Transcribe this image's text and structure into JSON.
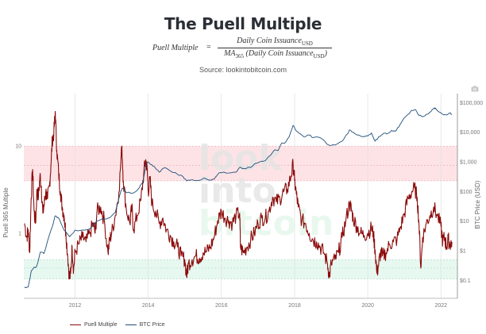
{
  "header": {
    "title": "The Puell Multiple",
    "formula": {
      "lhs": "Puell Multiple",
      "equals": "=",
      "numerator": "Daily Coin Issuance",
      "numerator_sub": "USD",
      "denominator_ma": "MA",
      "denominator_ma_sub": "365",
      "denominator_text": " (Daily Coin Issuance",
      "denominator_sub": "USD",
      "denominator_close": ")"
    },
    "source": "Source: lookintobitcoin.com"
  },
  "toolbar": {
    "camera_icon": "camera-icon"
  },
  "watermark": {
    "line1": "look",
    "line2": "into",
    "line3": "bitcoin"
  },
  "chart_data": {
    "type": "line",
    "title": "The Puell Multiple",
    "xlabel": "",
    "ylabel_left": "Puell 365 Multiple",
    "ylabel_right": "BTC Price (USD)",
    "x_ticks": [
      "2012",
      "2014",
      "2016",
      "2018",
      "2020",
      "2022"
    ],
    "x_range": [
      2010.6,
      2022.45
    ],
    "y_left_scale": "log",
    "y_left_ticks": [
      "10",
      "1"
    ],
    "y_left_range": [
      0.18,
      40
    ],
    "y_right_scale": "log",
    "y_right_ticks": [
      "$100,000",
      "$10,000",
      "$1,000",
      "$100",
      "$10",
      "$1",
      "$0.1"
    ],
    "y_right_range": [
      0.025,
      200000
    ],
    "bands": [
      {
        "name": "high-zone",
        "from": 4,
        "to": 10,
        "mid": 6,
        "color": "#fde3e6"
      },
      {
        "name": "low-zone",
        "from": 0.3,
        "to": 0.5,
        "mid": 0.4,
        "color": "#e6f8f0"
      }
    ],
    "grid": true,
    "legend": "bottom-left",
    "series": [
      {
        "name": "Puell Multiple",
        "color": "#8b0a0a",
        "axis": "left",
        "points": [
          [
            2010.62,
            1.3
          ],
          [
            2010.68,
            0.9
          ],
          [
            2010.72,
            1.1
          ],
          [
            2010.76,
            0.6
          ],
          [
            2010.8,
            2.5
          ],
          [
            2010.84,
            5.4
          ],
          [
            2010.88,
            1.8
          ],
          [
            2010.92,
            1.3
          ],
          [
            2010.96,
            3.2
          ],
          [
            2011.0,
            2.6
          ],
          [
            2011.04,
            4.6
          ],
          [
            2011.08,
            3.4
          ],
          [
            2011.12,
            1.7
          ],
          [
            2011.16,
            2.2
          ],
          [
            2011.2,
            3.0
          ],
          [
            2011.25,
            2.5
          ],
          [
            2011.3,
            3.5
          ],
          [
            2011.34,
            6.0
          ],
          [
            2011.38,
            12.0
          ],
          [
            2011.42,
            14.0
          ],
          [
            2011.46,
            25.0
          ],
          [
            2011.5,
            9.0
          ],
          [
            2011.55,
            5.0
          ],
          [
            2011.6,
            3.0
          ],
          [
            2011.65,
            2.0
          ],
          [
            2011.7,
            1.6
          ],
          [
            2011.75,
            1.0
          ],
          [
            2011.8,
            0.55
          ],
          [
            2011.85,
            0.3
          ],
          [
            2011.88,
            0.35
          ],
          [
            2011.92,
            0.7
          ],
          [
            2011.96,
            0.38
          ],
          [
            2012.0,
            0.6
          ],
          [
            2012.1,
            0.75
          ],
          [
            2012.2,
            0.9
          ],
          [
            2012.3,
            0.8
          ],
          [
            2012.4,
            1.0
          ],
          [
            2012.5,
            1.3
          ],
          [
            2012.55,
            1.0
          ],
          [
            2012.6,
            1.8
          ],
          [
            2012.7,
            2.0
          ],
          [
            2012.8,
            1.4
          ],
          [
            2012.9,
            0.6
          ],
          [
            2012.95,
            0.85
          ],
          [
            2013.0,
            1.0
          ],
          [
            2013.1,
            1.6
          ],
          [
            2013.2,
            3.0
          ],
          [
            2013.28,
            10.0
          ],
          [
            2013.32,
            4.0
          ],
          [
            2013.4,
            1.9
          ],
          [
            2013.5,
            1.3
          ],
          [
            2013.55,
            2.0
          ],
          [
            2013.6,
            1.1
          ],
          [
            2013.7,
            1.6
          ],
          [
            2013.8,
            2.4
          ],
          [
            2013.88,
            5.0
          ],
          [
            2013.93,
            7.0
          ],
          [
            2013.97,
            5.5
          ],
          [
            2014.0,
            3.0
          ],
          [
            2014.05,
            4.2
          ],
          [
            2014.1,
            2.2
          ],
          [
            2014.2,
            1.8
          ],
          [
            2014.3,
            1.3
          ],
          [
            2014.4,
            1.5
          ],
          [
            2014.5,
            1.1
          ],
          [
            2014.6,
            0.95
          ],
          [
            2014.7,
            0.8
          ],
          [
            2014.8,
            0.7
          ],
          [
            2014.9,
            0.55
          ],
          [
            2015.0,
            0.5
          ],
          [
            2015.05,
            0.32
          ],
          [
            2015.1,
            0.45
          ],
          [
            2015.2,
            0.5
          ],
          [
            2015.3,
            0.55
          ],
          [
            2015.4,
            0.52
          ],
          [
            2015.5,
            0.6
          ],
          [
            2015.6,
            0.62
          ],
          [
            2015.7,
            0.7
          ],
          [
            2015.8,
            0.9
          ],
          [
            2015.9,
            1.4
          ],
          [
            2016.0,
            1.8
          ],
          [
            2016.1,
            1.5
          ],
          [
            2016.2,
            1.4
          ],
          [
            2016.3,
            1.3
          ],
          [
            2016.4,
            1.6
          ],
          [
            2016.5,
            1.7
          ],
          [
            2016.52,
            0.7
          ],
          [
            2016.6,
            0.6
          ],
          [
            2016.7,
            0.7
          ],
          [
            2016.8,
            0.85
          ],
          [
            2016.9,
            1.0
          ],
          [
            2017.0,
            1.3
          ],
          [
            2017.1,
            1.5
          ],
          [
            2017.2,
            1.5
          ],
          [
            2017.3,
            1.8
          ],
          [
            2017.4,
            2.6
          ],
          [
            2017.5,
            2.3
          ],
          [
            2017.6,
            2.5
          ],
          [
            2017.7,
            3.0
          ],
          [
            2017.8,
            3.2
          ],
          [
            2017.9,
            4.5
          ],
          [
            2017.96,
            6.2
          ],
          [
            2018.0,
            4.0
          ],
          [
            2018.05,
            2.8
          ],
          [
            2018.1,
            2.0
          ],
          [
            2018.2,
            1.4
          ],
          [
            2018.3,
            1.3
          ],
          [
            2018.4,
            1.0
          ],
          [
            2018.5,
            0.85
          ],
          [
            2018.6,
            0.8
          ],
          [
            2018.7,
            0.7
          ],
          [
            2018.8,
            0.6
          ],
          [
            2018.9,
            0.45
          ],
          [
            2018.95,
            0.32
          ],
          [
            2019.0,
            0.45
          ],
          [
            2019.1,
            0.5
          ],
          [
            2019.2,
            0.6
          ],
          [
            2019.3,
            0.9
          ],
          [
            2019.4,
            1.4
          ],
          [
            2019.5,
            2.2
          ],
          [
            2019.55,
            1.9
          ],
          [
            2019.6,
            1.5
          ],
          [
            2019.7,
            1.2
          ],
          [
            2019.8,
            1.0
          ],
          [
            2019.9,
            0.95
          ],
          [
            2020.0,
            1.0
          ],
          [
            2020.1,
            1.15
          ],
          [
            2020.15,
            1.0
          ],
          [
            2020.2,
            0.65
          ],
          [
            2020.25,
            0.35
          ],
          [
            2020.3,
            0.45
          ],
          [
            2020.35,
            0.6
          ],
          [
            2020.4,
            0.55
          ],
          [
            2020.5,
            0.6
          ],
          [
            2020.6,
            0.75
          ],
          [
            2020.7,
            0.8
          ],
          [
            2020.8,
            0.85
          ],
          [
            2020.9,
            1.2
          ],
          [
            2021.0,
            1.7
          ],
          [
            2021.1,
            2.5
          ],
          [
            2021.2,
            3.0
          ],
          [
            2021.28,
            3.3
          ],
          [
            2021.35,
            2.6
          ],
          [
            2021.4,
            1.3
          ],
          [
            2021.45,
            0.4
          ],
          [
            2021.5,
            0.9
          ],
          [
            2021.6,
            1.3
          ],
          [
            2021.7,
            1.6
          ],
          [
            2021.8,
            2.0
          ],
          [
            2021.9,
            1.6
          ],
          [
            2022.0,
            1.2
          ],
          [
            2022.05,
            0.8
          ],
          [
            2022.1,
            0.9
          ],
          [
            2022.15,
            0.7
          ],
          [
            2022.2,
            0.85
          ],
          [
            2022.25,
            0.75
          ],
          [
            2022.3,
            0.8
          ]
        ]
      },
      {
        "name": "BTC Price",
        "color": "#1f4e79",
        "axis": "right",
        "points": [
          [
            2010.62,
            0.06
          ],
          [
            2010.72,
            0.06
          ],
          [
            2010.8,
            0.2
          ],
          [
            2010.85,
            0.25
          ],
          [
            2010.95,
            0.3
          ],
          [
            2011.05,
            0.9
          ],
          [
            2011.15,
            0.8
          ],
          [
            2011.3,
            3.5
          ],
          [
            2011.4,
            8
          ],
          [
            2011.45,
            15
          ],
          [
            2011.55,
            13
          ],
          [
            2011.7,
            5
          ],
          [
            2011.85,
            3
          ],
          [
            2012.0,
            5
          ],
          [
            2012.2,
            5
          ],
          [
            2012.4,
            5.5
          ],
          [
            2012.6,
            10
          ],
          [
            2012.8,
            12
          ],
          [
            2012.95,
            13
          ],
          [
            2013.1,
            20
          ],
          [
            2013.25,
            100
          ],
          [
            2013.3,
            130
          ],
          [
            2013.4,
            90
          ],
          [
            2013.6,
            90
          ],
          [
            2013.7,
            110
          ],
          [
            2013.85,
            200
          ],
          [
            2013.95,
            900
          ],
          [
            2014.0,
            1000
          ],
          [
            2014.1,
            800
          ],
          [
            2014.2,
            600
          ],
          [
            2014.3,
            450
          ],
          [
            2014.4,
            600
          ],
          [
            2014.5,
            600
          ],
          [
            2014.6,
            500
          ],
          [
            2014.8,
            380
          ],
          [
            2014.95,
            320
          ],
          [
            2015.05,
            230
          ],
          [
            2015.2,
            250
          ],
          [
            2015.4,
            240
          ],
          [
            2015.55,
            280
          ],
          [
            2015.7,
            240
          ],
          [
            2015.8,
            260
          ],
          [
            2015.9,
            380
          ],
          [
            2016.0,
            430
          ],
          [
            2016.2,
            420
          ],
          [
            2016.4,
            450
          ],
          [
            2016.5,
            650
          ],
          [
            2016.6,
            600
          ],
          [
            2016.8,
            650
          ],
          [
            2016.95,
            900
          ],
          [
            2017.05,
            1000
          ],
          [
            2017.2,
            1100
          ],
          [
            2017.35,
            1700
          ],
          [
            2017.45,
            2500
          ],
          [
            2017.55,
            2400
          ],
          [
            2017.65,
            4300
          ],
          [
            2017.75,
            4500
          ],
          [
            2017.85,
            7000
          ],
          [
            2017.96,
            17000
          ],
          [
            2018.05,
            11000
          ],
          [
            2018.15,
            9000
          ],
          [
            2018.25,
            7000
          ],
          [
            2018.4,
            8000
          ],
          [
            2018.5,
            6500
          ],
          [
            2018.7,
            6500
          ],
          [
            2018.87,
            4200
          ],
          [
            2018.95,
            3600
          ],
          [
            2019.1,
            3700
          ],
          [
            2019.3,
            5000
          ],
          [
            2019.45,
            9000
          ],
          [
            2019.5,
            12000
          ],
          [
            2019.6,
            10000
          ],
          [
            2019.75,
            8000
          ],
          [
            2019.9,
            7200
          ],
          [
            2020.0,
            7500
          ],
          [
            2020.1,
            9500
          ],
          [
            2020.2,
            5000
          ],
          [
            2020.3,
            7000
          ],
          [
            2020.45,
            9300
          ],
          [
            2020.55,
            9200
          ],
          [
            2020.65,
            11500
          ],
          [
            2020.75,
            10700
          ],
          [
            2020.85,
            15000
          ],
          [
            2020.95,
            25000
          ],
          [
            2021.1,
            40000
          ],
          [
            2021.2,
            55000
          ],
          [
            2021.3,
            58000
          ],
          [
            2021.4,
            37000
          ],
          [
            2021.5,
            33000
          ],
          [
            2021.6,
            40000
          ],
          [
            2021.7,
            47000
          ],
          [
            2021.8,
            62000
          ],
          [
            2021.85,
            65000
          ],
          [
            2021.95,
            48000
          ],
          [
            2022.05,
            40000
          ],
          [
            2022.15,
            38000
          ],
          [
            2022.25,
            45000
          ],
          [
            2022.3,
            40000
          ]
        ]
      }
    ]
  },
  "legend": {
    "items": [
      {
        "label": "Puell Multiple",
        "color": "#8b0a0a"
      },
      {
        "label": "BTC Price",
        "color": "#1f4e79"
      }
    ]
  }
}
